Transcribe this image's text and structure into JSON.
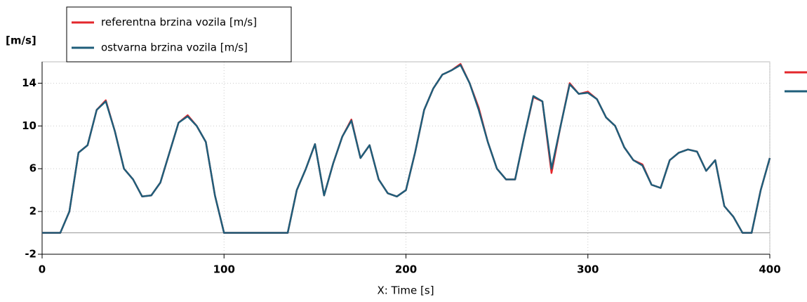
{
  "chart_data": {
    "type": "line",
    "x_label": "X: Time [s]",
    "y_label": "[m/s]",
    "x": [
      0,
      5,
      10,
      15,
      20,
      25,
      30,
      35,
      40,
      45,
      50,
      55,
      60,
      65,
      70,
      75,
      80,
      85,
      90,
      95,
      100,
      105,
      110,
      115,
      120,
      125,
      130,
      135,
      140,
      145,
      150,
      155,
      160,
      165,
      170,
      175,
      180,
      185,
      190,
      195,
      200,
      205,
      210,
      215,
      220,
      225,
      230,
      235,
      240,
      245,
      250,
      255,
      260,
      265,
      270,
      275,
      280,
      285,
      290,
      295,
      300,
      305,
      310,
      315,
      320,
      325,
      330,
      335,
      340,
      345,
      350,
      355,
      360,
      365,
      370,
      375,
      380,
      385,
      390,
      395,
      400
    ],
    "series": [
      {
        "name": "referentna brzina vozila [m/s]",
        "color": "#e3262b",
        "values": [
          0,
          0,
          0,
          2,
          7.5,
          8.2,
          11.5,
          12.4,
          9.5,
          6,
          5,
          3.4,
          3.5,
          4.7,
          7.5,
          10.3,
          11,
          10,
          8.5,
          3.5,
          0,
          0,
          0,
          0,
          0,
          0,
          0,
          0,
          4,
          6,
          8.3,
          3.5,
          6.5,
          9,
          10.6,
          7,
          8.2,
          5,
          3.7,
          3.4,
          4,
          7.5,
          11.5,
          13.5,
          14.8,
          15.2,
          15.8,
          14,
          11.7,
          8.5,
          6,
          5,
          5,
          9,
          12.7,
          12.3,
          5.6,
          10,
          14,
          13,
          13.2,
          12.5,
          10.8,
          10,
          8,
          6.8,
          6.4,
          4.5,
          4.2,
          6.8,
          7.5,
          7.8,
          7.6,
          5.8,
          6.8,
          2.5,
          1.5,
          0,
          0,
          4,
          7
        ]
      },
      {
        "name": "ostvarna brzina vozila [m/s]",
        "color": "#1f5e7a",
        "values": [
          0,
          0,
          0,
          2,
          7.5,
          8.2,
          11.5,
          12.3,
          9.5,
          6,
          5,
          3.4,
          3.5,
          4.7,
          7.5,
          10.3,
          10.9,
          10,
          8.5,
          3.5,
          0,
          0,
          0,
          0,
          0,
          0,
          0,
          0,
          4,
          6,
          8.3,
          3.5,
          6.5,
          9,
          10.5,
          7,
          8.2,
          5,
          3.7,
          3.4,
          4,
          7.5,
          11.5,
          13.5,
          14.8,
          15.2,
          15.7,
          14,
          11.5,
          8.5,
          6,
          5,
          5,
          9,
          12.8,
          12.3,
          6,
          10,
          13.9,
          13,
          13.1,
          12.5,
          10.8,
          10,
          8,
          6.8,
          6.3,
          4.5,
          4.2,
          6.8,
          7.5,
          7.8,
          7.6,
          5.8,
          6.8,
          2.5,
          1.5,
          0,
          0,
          4,
          7
        ]
      }
    ],
    "xlim": [
      0,
      400
    ],
    "xticks": [
      0,
      100,
      200,
      300,
      400
    ],
    "ylim": [
      -2,
      16
    ],
    "yticks": [
      -2,
      2,
      6,
      10,
      14
    ],
    "grid": true,
    "legend": "upper left"
  }
}
